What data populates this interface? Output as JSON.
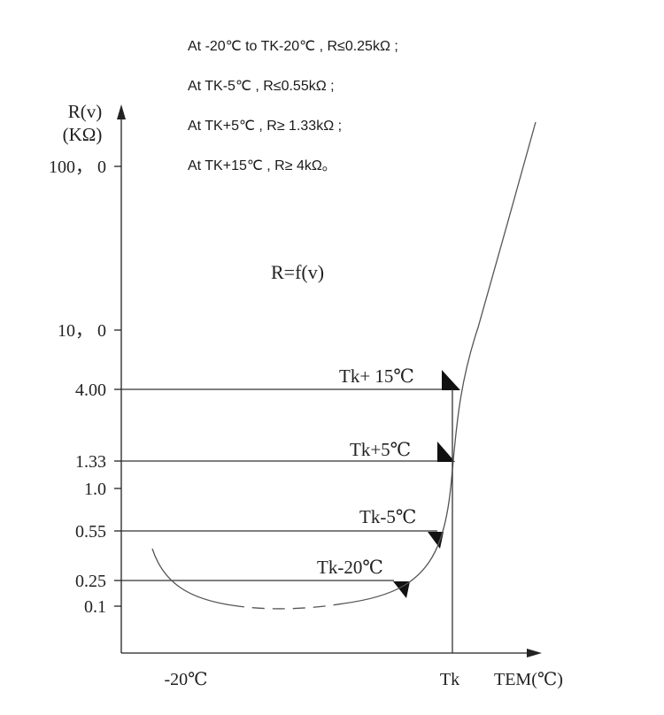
{
  "notes": [
    "At -20℃  to TK-20℃ , R≤0.25kΩ ;",
    "At TK-5℃ , R≤0.55kΩ ;",
    "At TK+5℃ , R≥ 1.33kΩ ;",
    "At TK+15℃ , R≥ 4kΩ。"
  ],
  "chart_data": {
    "type": "line",
    "title": "R=f(v)",
    "ylabel_line1": "R(v)",
    "ylabel_line2": "(KΩ)",
    "xlabel": "TEM(℃)",
    "yscale": "log",
    "y_ticks": [
      {
        "label": "100， 0",
        "value": 100
      },
      {
        "label": "10， 0",
        "value": 10
      },
      {
        "label": "4.00",
        "value": 4
      },
      {
        "label": "1.33",
        "value": 1.33
      },
      {
        "label": "1.0",
        "value": 1
      },
      {
        "label": "0.55",
        "value": 0.55
      },
      {
        "label": "0.25",
        "value": 0.25
      },
      {
        "label": "0.1",
        "value": 0.1
      }
    ],
    "x_ticks": [
      {
        "label": "-20℃",
        "value": -20
      },
      {
        "label": "Tk",
        "value": "Tk"
      }
    ],
    "markers": [
      {
        "label": "Tk+ 15℃",
        "value": 4
      },
      {
        "label": "Tk+5℃",
        "value": 1.33
      },
      {
        "label": "Tk-5℃",
        "value": 0.55
      },
      {
        "label": "Tk-20℃",
        "value": 0.25
      }
    ]
  }
}
